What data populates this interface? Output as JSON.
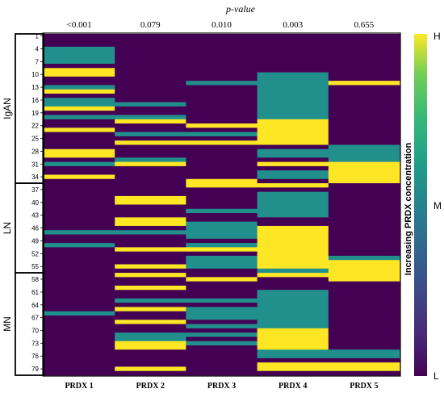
{
  "chart_data": {
    "type": "heatmap",
    "pvalue_label": "p-value",
    "columns": [
      "PRDX 1",
      "PRDX 2",
      "PRDX 3",
      "PRDX 4",
      "PRDX 5"
    ],
    "pvalues": [
      "<0.001",
      "0.079",
      "0.010",
      "0.003",
      "0.655"
    ],
    "row_count": 80,
    "row_tick_values": [
      1,
      4,
      7,
      10,
      13,
      16,
      19,
      22,
      25,
      28,
      31,
      34,
      37,
      40,
      43,
      46,
      49,
      52,
      55,
      58,
      61,
      64,
      67,
      70,
      73,
      76,
      79
    ],
    "groups": [
      {
        "name": "IgAN",
        "start": 1,
        "end": 35
      },
      {
        "name": "LN",
        "start": 36,
        "end": 56
      },
      {
        "name": "MN",
        "start": 57,
        "end": 80
      }
    ],
    "colorbar": {
      "title": "Increasing PRDX concentration",
      "top": "H",
      "middle": "M",
      "bottom": "L"
    },
    "level_colors": {
      "L": "#440154",
      "M": "#21908d",
      "H": "#fde725"
    },
    "cells": [
      [
        "L",
        "L",
        "L",
        "L",
        "L"
      ],
      [
        "L",
        "L",
        "L",
        "L",
        "L"
      ],
      [
        "L",
        "L",
        "L",
        "L",
        "L"
      ],
      [
        "M",
        "L",
        "L",
        "L",
        "L"
      ],
      [
        "M",
        "L",
        "L",
        "L",
        "L"
      ],
      [
        "M",
        "L",
        "L",
        "L",
        "L"
      ],
      [
        "M",
        "L",
        "L",
        "L",
        "L"
      ],
      [
        "L",
        "L",
        "L",
        "L",
        "L"
      ],
      [
        "H",
        "L",
        "L",
        "L",
        "L"
      ],
      [
        "H",
        "L",
        "L",
        "M",
        "L"
      ],
      [
        "L",
        "L",
        "L",
        "M",
        "L"
      ],
      [
        "L",
        "L",
        "M",
        "M",
        "H"
      ],
      [
        "M",
        "L",
        "L",
        "M",
        "L"
      ],
      [
        "H",
        "L",
        "L",
        "M",
        "L"
      ],
      [
        "L",
        "L",
        "L",
        "M",
        "L"
      ],
      [
        "M",
        "L",
        "L",
        "M",
        "L"
      ],
      [
        "M",
        "M",
        "L",
        "M",
        "L"
      ],
      [
        "H",
        "L",
        "L",
        "M",
        "L"
      ],
      [
        "L",
        "L",
        "L",
        "M",
        "L"
      ],
      [
        "M",
        "M",
        "L",
        "M",
        "L"
      ],
      [
        "L",
        "H",
        "L",
        "H",
        "L"
      ],
      [
        "L",
        "L",
        "H",
        "H",
        "L"
      ],
      [
        "H",
        "L",
        "L",
        "H",
        "L"
      ],
      [
        "L",
        "M",
        "M",
        "H",
        "L"
      ],
      [
        "L",
        "L",
        "L",
        "H",
        "L"
      ],
      [
        "L",
        "H",
        "H",
        "H",
        "L"
      ],
      [
        "L",
        "L",
        "L",
        "L",
        "M"
      ],
      [
        "H",
        "L",
        "L",
        "M",
        "M"
      ],
      [
        "H",
        "L",
        "L",
        "M",
        "M"
      ],
      [
        "L",
        "M",
        "L",
        "L",
        "M"
      ],
      [
        "M",
        "H",
        "L",
        "H",
        "H"
      ],
      [
        "L",
        "L",
        "L",
        "L",
        "H"
      ],
      [
        "L",
        "L",
        "L",
        "M",
        "H"
      ],
      [
        "H",
        "L",
        "L",
        "M",
        "H"
      ],
      [
        "L",
        "L",
        "H",
        "L",
        "H"
      ],
      [
        "L",
        "L",
        "H",
        "H",
        "L"
      ],
      [
        "L",
        "L",
        "L",
        "L",
        "L"
      ],
      [
        "L",
        "L",
        "L",
        "M",
        "L"
      ],
      [
        "L",
        "H",
        "L",
        "M",
        "L"
      ],
      [
        "L",
        "H",
        "L",
        "M",
        "L"
      ],
      [
        "L",
        "L",
        "L",
        "M",
        "L"
      ],
      [
        "L",
        "L",
        "M",
        "M",
        "L"
      ],
      [
        "L",
        "L",
        "L",
        "M",
        "L"
      ],
      [
        "L",
        "H",
        "L",
        "L",
        "L"
      ],
      [
        "L",
        "H",
        "M",
        "L",
        "L"
      ],
      [
        "L",
        "L",
        "M",
        "H",
        "L"
      ],
      [
        "M",
        "M",
        "M",
        "H",
        "L"
      ],
      [
        "L",
        "L",
        "M",
        "H",
        "L"
      ],
      [
        "L",
        "L",
        "L",
        "H",
        "L"
      ],
      [
        "M",
        "L",
        "M",
        "H",
        "L"
      ],
      [
        "L",
        "H",
        "H",
        "H",
        "L"
      ],
      [
        "L",
        "L",
        "L",
        "H",
        "L"
      ],
      [
        "L",
        "L",
        "M",
        "H",
        "M"
      ],
      [
        "L",
        "L",
        "M",
        "H",
        "H"
      ],
      [
        "L",
        "H",
        "M",
        "H",
        "H"
      ],
      [
        "L",
        "L",
        "L",
        "M",
        "H"
      ],
      [
        "L",
        "H",
        "L",
        "H",
        "H"
      ],
      [
        "L",
        "L",
        "H",
        "L",
        "H"
      ],
      [
        "L",
        "L",
        "L",
        "L",
        "L"
      ],
      [
        "L",
        "H",
        "L",
        "L",
        "L"
      ],
      [
        "L",
        "L",
        "L",
        "M",
        "L"
      ],
      [
        "L",
        "L",
        "L",
        "M",
        "L"
      ],
      [
        "L",
        "M",
        "M",
        "M",
        "L"
      ],
      [
        "L",
        "L",
        "L",
        "M",
        "L"
      ],
      [
        "L",
        "H",
        "M",
        "M",
        "L"
      ],
      [
        "M",
        "L",
        "M",
        "M",
        "L"
      ],
      [
        "L",
        "L",
        "M",
        "M",
        "L"
      ],
      [
        "L",
        "H",
        "L",
        "M",
        "L"
      ],
      [
        "L",
        "L",
        "M",
        "M",
        "L"
      ],
      [
        "L",
        "L",
        "L",
        "H",
        "L"
      ],
      [
        "L",
        "M",
        "M",
        "H",
        "L"
      ],
      [
        "L",
        "M",
        "L",
        "H",
        "L"
      ],
      [
        "L",
        "H",
        "M",
        "H",
        "L"
      ],
      [
        "L",
        "H",
        "L",
        "H",
        "L"
      ],
      [
        "L",
        "L",
        "L",
        "M",
        "M"
      ],
      [
        "L",
        "L",
        "L",
        "M",
        "M"
      ],
      [
        "L",
        "L",
        "L",
        "L",
        "L"
      ],
      [
        "L",
        "L",
        "L",
        "H",
        "H"
      ],
      [
        "L",
        "H",
        "L",
        "H",
        "H"
      ],
      [
        "L",
        "L",
        "L",
        "L",
        "L"
      ]
    ]
  }
}
